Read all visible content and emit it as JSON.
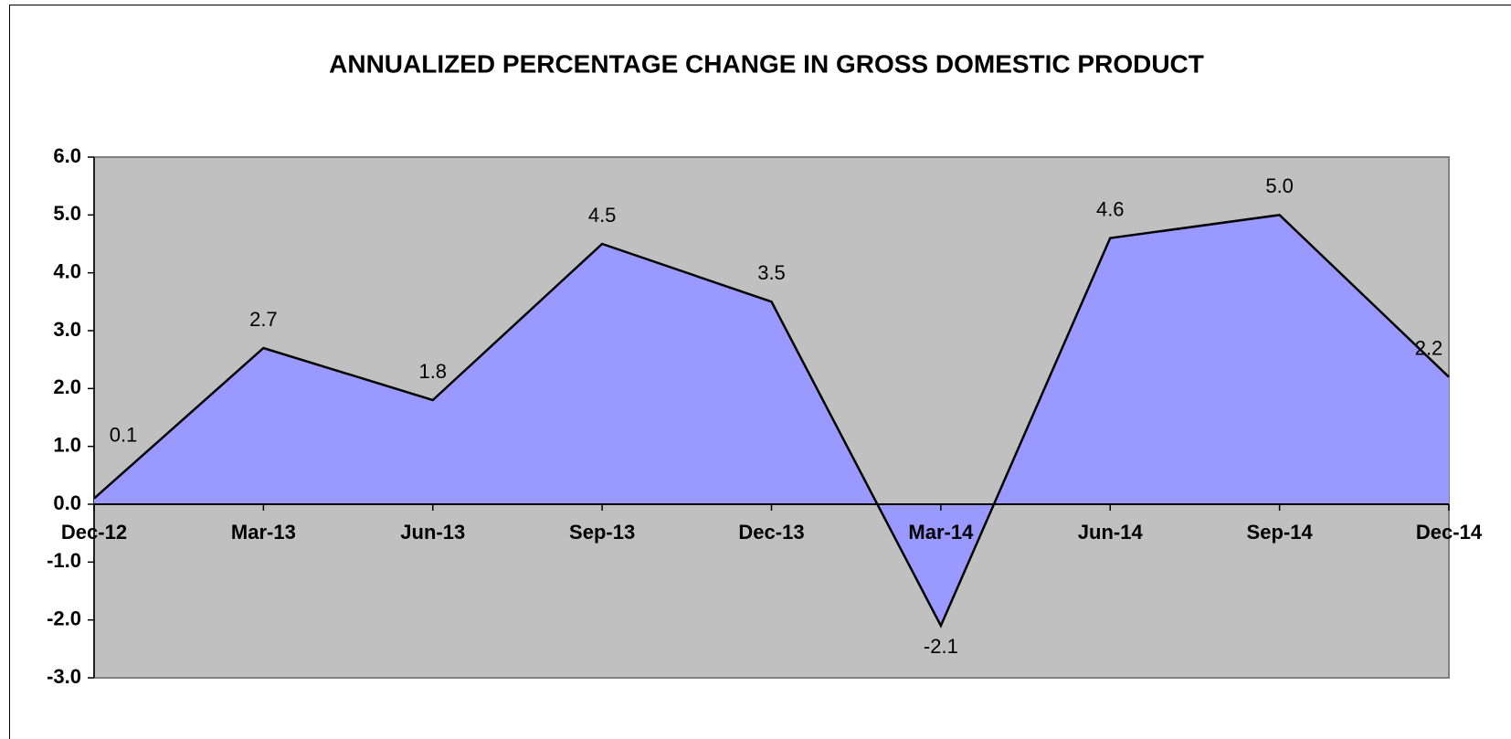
{
  "chart_data": {
    "type": "area",
    "title": "ANNUALIZED  PERCENTAGE CHANGE IN GROSS DOMESTIC PRODUCT",
    "categories": [
      "Dec-12",
      "Mar-13",
      "Jun-13",
      "Sep-13",
      "Dec-13",
      "Mar-14",
      "Jun-14",
      "Sep-14",
      "Dec-14"
    ],
    "values": [
      0.1,
      2.7,
      1.8,
      4.5,
      3.5,
      -2.1,
      4.6,
      5.0,
      2.2
    ],
    "value_labels": [
      "0.1",
      "2.7",
      "1.8",
      "4.5",
      "3.5",
      "-2.1",
      "4.6",
      "5.0",
      "2.2"
    ],
    "color": "#9999ff",
    "plot_background": "#c0c0c0",
    "ylim": [
      -3,
      6
    ],
    "yticks": [
      {
        "value": -3,
        "label": "-3.0"
      },
      {
        "value": -2,
        "label": "-2.0"
      },
      {
        "value": -1,
        "label": "-1.0"
      },
      {
        "value": 0,
        "label": "0.0"
      },
      {
        "value": 1,
        "label": "1.0"
      },
      {
        "value": 2,
        "label": "2.0"
      },
      {
        "value": 3,
        "label": "3.0"
      },
      {
        "value": 4,
        "label": "4.0"
      },
      {
        "value": 5,
        "label": "5.0"
      },
      {
        "value": 6,
        "label": "6.0"
      }
    ],
    "grid": false
  }
}
